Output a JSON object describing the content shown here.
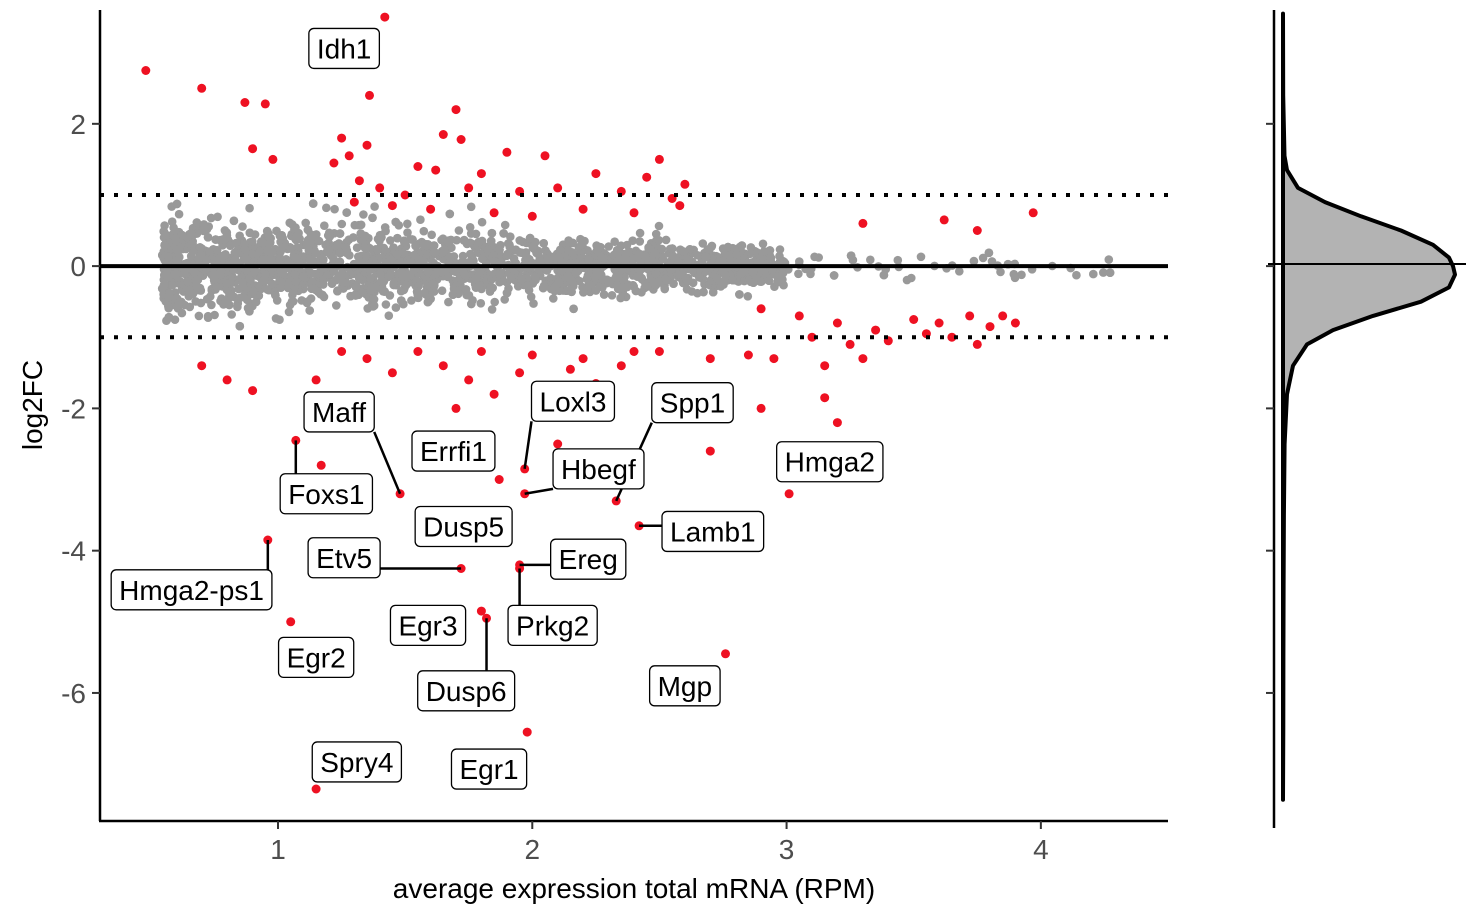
{
  "chart_data": [
    {
      "type": "scatter",
      "title": "",
      "xlabel": "average expression total mRNA (RPM)",
      "ylabel": "log2FC",
      "xlim": [
        0.3,
        4.5
      ],
      "ylim": [
        -7.8,
        3.6
      ],
      "x_ticks": [
        1,
        2,
        3,
        4
      ],
      "y_ticks": [
        2,
        0,
        -2,
        -4,
        -6
      ],
      "hlines": [
        {
          "y": 0,
          "style": "solid"
        },
        {
          "y": 1,
          "style": "dotted"
        },
        {
          "y": -1,
          "style": "dotted"
        }
      ],
      "grid": false,
      "colors": {
        "not_significant": "#999999",
        "significant": "#ee1122"
      },
      "significant_points": [
        [
          1.42,
          3.5
        ],
        [
          0.48,
          2.75
        ],
        [
          0.7,
          2.5
        ],
        [
          0.87,
          2.3
        ],
        [
          0.95,
          2.28
        ],
        [
          1.36,
          2.4
        ],
        [
          1.25,
          1.8
        ],
        [
          1.35,
          1.7
        ],
        [
          1.7,
          2.2
        ],
        [
          1.65,
          1.85
        ],
        [
          1.72,
          1.78
        ],
        [
          1.9,
          1.6
        ],
        [
          2.05,
          1.55
        ],
        [
          2.5,
          1.5
        ],
        [
          0.9,
          1.65
        ],
        [
          0.98,
          1.5
        ],
        [
          1.22,
          1.45
        ],
        [
          1.28,
          1.55
        ],
        [
          1.55,
          1.4
        ],
        [
          1.62,
          1.35
        ],
        [
          1.8,
          1.3
        ],
        [
          2.25,
          1.3
        ],
        [
          2.45,
          1.25
        ],
        [
          2.6,
          1.15
        ],
        [
          1.32,
          1.2
        ],
        [
          1.4,
          1.1
        ],
        [
          1.5,
          1.0
        ],
        [
          1.75,
          1.1
        ],
        [
          1.95,
          1.05
        ],
        [
          2.1,
          1.1
        ],
        [
          2.35,
          1.05
        ],
        [
          2.55,
          0.95
        ],
        [
          1.3,
          0.9
        ],
        [
          1.45,
          0.85
        ],
        [
          1.6,
          0.8
        ],
        [
          1.85,
          0.75
        ],
        [
          2.0,
          0.7
        ],
        [
          2.2,
          0.8
        ],
        [
          2.4,
          0.75
        ],
        [
          2.58,
          0.85
        ],
        [
          3.3,
          0.6
        ],
        [
          3.62,
          0.65
        ],
        [
          3.75,
          0.5
        ],
        [
          3.97,
          0.75
        ],
        [
          2.9,
          -0.6
        ],
        [
          3.05,
          -0.7
        ],
        [
          3.2,
          -0.8
        ],
        [
          3.35,
          -0.9
        ],
        [
          3.5,
          -0.75
        ],
        [
          3.6,
          -0.8
        ],
        [
          3.72,
          -0.7
        ],
        [
          3.8,
          -0.85
        ],
        [
          3.85,
          -0.7
        ],
        [
          3.9,
          -0.8
        ],
        [
          3.1,
          -1.0
        ],
        [
          3.25,
          -1.1
        ],
        [
          3.4,
          -1.05
        ],
        [
          3.55,
          -0.95
        ],
        [
          3.65,
          -1.0
        ],
        [
          3.75,
          -1.1
        ],
        [
          2.95,
          -1.3
        ],
        [
          3.15,
          -1.4
        ],
        [
          3.3,
          -1.3
        ],
        [
          2.5,
          -1.2
        ],
        [
          2.7,
          -1.3
        ],
        [
          2.85,
          -1.25
        ],
        [
          1.55,
          -1.2
        ],
        [
          1.65,
          -1.4
        ],
        [
          1.75,
          -1.6
        ],
        [
          1.85,
          -1.8
        ],
        [
          1.95,
          -1.5
        ],
        [
          2.05,
          -1.7
        ],
        [
          2.15,
          -1.45
        ],
        [
          2.25,
          -1.65
        ],
        [
          2.35,
          -1.4
        ],
        [
          1.8,
          -1.2
        ],
        [
          2.0,
          -1.25
        ],
        [
          2.2,
          -1.3
        ],
        [
          2.4,
          -1.2
        ],
        [
          2.1,
          -1.9
        ],
        [
          2.3,
          -1.85
        ],
        [
          1.7,
          -2.0
        ],
        [
          1.45,
          -1.5
        ],
        [
          1.35,
          -1.3
        ],
        [
          1.25,
          -1.2
        ],
        [
          0.8,
          -1.6
        ],
        [
          0.9,
          -1.75
        ],
        [
          0.7,
          -1.4
        ],
        [
          1.15,
          -1.6
        ],
        [
          2.7,
          -2.6
        ],
        [
          3.2,
          -2.2
        ],
        [
          3.15,
          -1.85
        ],
        [
          2.9,
          -2.0
        ],
        [
          1.48,
          -3.2
        ],
        [
          1.72,
          -4.25
        ],
        [
          2.33,
          -3.3
        ],
        [
          2.42,
          -3.65
        ],
        [
          1.95,
          -4.2
        ],
        [
          1.95,
          -4.25
        ],
        [
          0.96,
          -3.85
        ],
        [
          1.8,
          -4.85
        ],
        [
          1.82,
          -4.95
        ],
        [
          1.05,
          -5.0
        ],
        [
          1.15,
          -7.35
        ],
        [
          1.98,
          -6.55
        ],
        [
          2.76,
          -5.45
        ],
        [
          3.01,
          -3.2
        ],
        [
          1.97,
          -3.2
        ],
        [
          1.97,
          -2.85
        ],
        [
          1.07,
          -2.45
        ],
        [
          1.17,
          -2.8
        ],
        [
          1.87,
          -3.0
        ],
        [
          2.1,
          -2.5
        ],
        [
          1.6,
          -2.7
        ]
      ],
      "density_panel": {
        "type": "density",
        "variable": "log2FC",
        "peak_at": 0,
        "fill": "#b3b3b3",
        "y_ticks": [
          2,
          0,
          -2,
          -4,
          -6
        ]
      },
      "annotations": [
        {
          "text": "Idh1",
          "x": 1.42,
          "y": 3.5,
          "lx": 1.26,
          "ly": 3.06
        },
        {
          "text": "Maff",
          "x": 1.48,
          "y": -3.2,
          "lx": 1.24,
          "ly": -2.05
        },
        {
          "text": "Errfi1",
          "x": 1.87,
          "y": -2.5,
          "lx": 1.69,
          "ly": -2.6
        },
        {
          "text": "Loxl3",
          "x": 1.97,
          "y": -2.85,
          "lx": 2.16,
          "ly": -1.9
        },
        {
          "text": "Spp1",
          "x": 2.33,
          "y": -3.3,
          "lx": 2.63,
          "ly": -1.92
        },
        {
          "text": "Hbegf",
          "x": 1.97,
          "y": -3.2,
          "lx": 2.26,
          "ly": -2.85
        },
        {
          "text": "Hmga2",
          "x": 3.01,
          "y": -3.2,
          "lx": 3.17,
          "ly": -2.75
        },
        {
          "text": "Foxs1",
          "x": 1.07,
          "y": -2.45,
          "lx": 1.19,
          "ly": -3.2
        },
        {
          "text": "Dusp5",
          "x": 1.97,
          "y": -3.2,
          "lx": 1.73,
          "ly": -3.66
        },
        {
          "text": "Lamb1",
          "x": 2.42,
          "y": -3.65,
          "lx": 2.71,
          "ly": -3.73
        },
        {
          "text": "Etv5",
          "x": 1.72,
          "y": -4.25,
          "lx": 1.26,
          "ly": -4.1
        },
        {
          "text": "Ereg",
          "x": 1.95,
          "y": -4.2,
          "lx": 2.22,
          "ly": -4.12
        },
        {
          "text": "Hmga2-ps1",
          "x": 0.96,
          "y": -3.85,
          "lx": 0.66,
          "ly": -4.55
        },
        {
          "text": "Egr3",
          "x": 1.8,
          "y": -4.85,
          "lx": 1.59,
          "ly": -5.05
        },
        {
          "text": "Prkg2",
          "x": 1.95,
          "y": -4.25,
          "lx": 2.08,
          "ly": -5.05
        },
        {
          "text": "Egr2",
          "x": 1.05,
          "y": -5.0,
          "lx": 1.15,
          "ly": -5.5
        },
        {
          "text": "Dusp6",
          "x": 1.82,
          "y": -4.95,
          "lx": 1.74,
          "ly": -5.97
        },
        {
          "text": "Mgp",
          "x": 2.76,
          "y": -5.45,
          "lx": 2.6,
          "ly": -5.9
        },
        {
          "text": "Spry4",
          "x": 1.15,
          "y": -7.35,
          "lx": 1.31,
          "ly": -6.97
        },
        {
          "text": "Egr1",
          "x": 1.98,
          "y": -6.55,
          "lx": 1.83,
          "ly": -7.07
        }
      ]
    }
  ]
}
